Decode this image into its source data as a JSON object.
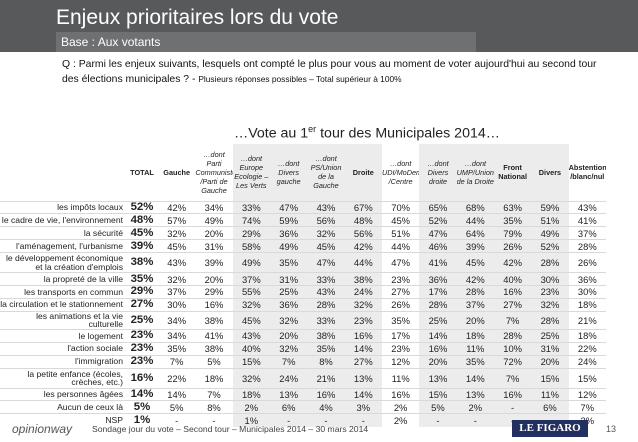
{
  "title": "Enjeux prioritaires lors du vote",
  "subtitle": "Base : Aux votants",
  "question": "Q : Parmi les enjeux suivants, lesquels ont compté le plus pour vous au moment de voter aujourd'hui au second tour des élections municipales ? - ",
  "question_note": "Plusieurs réponses possibles – Total supérieur à 100%",
  "section_prefix": "…Vote au 1",
  "section_sup": "er",
  "section_suffix": " tour des Municipales 2014…",
  "headers": [
    "TOTAL",
    "Gauche",
    "…dont Parti Communiste /Parti de Gauche",
    "…dont Europe Ecologie – Les Verts",
    "…dont Divers gauche",
    "…dont PS/Union de la Gauche",
    "Droite",
    "…dont UDI/MoDem /Centre",
    "…dont Divers droite",
    "…dont UMP/Union de la Droite",
    "Front National",
    "Divers",
    "Abstention /blanc/nul"
  ],
  "rows": [
    {
      "label": "les impôts locaux",
      "values": [
        "52%",
        "42%",
        "34%",
        "33%",
        "47%",
        "43%",
        "67%",
        "70%",
        "65%",
        "68%",
        "63%",
        "59%",
        "43%"
      ]
    },
    {
      "label": "le cadre de vie, l'environnement",
      "values": [
        "48%",
        "57%",
        "49%",
        "74%",
        "59%",
        "56%",
        "48%",
        "45%",
        "52%",
        "44%",
        "35%",
        "51%",
        "41%"
      ]
    },
    {
      "label": "la sécurité",
      "values": [
        "45%",
        "32%",
        "20%",
        "29%",
        "36%",
        "32%",
        "56%",
        "51%",
        "47%",
        "64%",
        "79%",
        "49%",
        "37%"
      ]
    },
    {
      "label": "l'aménagement, l'urbanisme",
      "values": [
        "39%",
        "45%",
        "31%",
        "58%",
        "49%",
        "45%",
        "42%",
        "44%",
        "46%",
        "39%",
        "26%",
        "52%",
        "28%"
      ]
    },
    {
      "label": "le développement économique et la création d'emplois",
      "values": [
        "38%",
        "43%",
        "39%",
        "49%",
        "35%",
        "47%",
        "44%",
        "47%",
        "41%",
        "45%",
        "42%",
        "28%",
        "26%"
      ]
    },
    {
      "label": "la propreté de la ville",
      "values": [
        "35%",
        "32%",
        "20%",
        "37%",
        "31%",
        "33%",
        "38%",
        "23%",
        "36%",
        "42%",
        "40%",
        "30%",
        "36%"
      ]
    },
    {
      "label": "les transports en commun",
      "values": [
        "29%",
        "37%",
        "29%",
        "55%",
        "25%",
        "43%",
        "24%",
        "27%",
        "17%",
        "28%",
        "16%",
        "23%",
        "30%"
      ]
    },
    {
      "label": "la circulation et le stationnement",
      "values": [
        "27%",
        "30%",
        "16%",
        "32%",
        "36%",
        "28%",
        "32%",
        "26%",
        "28%",
        "37%",
        "27%",
        "32%",
        "18%"
      ]
    },
    {
      "label": "les animations et la vie culturelle",
      "values": [
        "25%",
        "34%",
        "38%",
        "45%",
        "32%",
        "33%",
        "23%",
        "35%",
        "25%",
        "20%",
        "7%",
        "28%",
        "21%"
      ]
    },
    {
      "label": "le logement",
      "values": [
        "23%",
        "34%",
        "41%",
        "43%",
        "20%",
        "38%",
        "16%",
        "17%",
        "14%",
        "18%",
        "28%",
        "25%",
        "18%"
      ]
    },
    {
      "label": "l'action sociale",
      "values": [
        "23%",
        "35%",
        "38%",
        "40%",
        "32%",
        "35%",
        "14%",
        "23%",
        "16%",
        "11%",
        "10%",
        "31%",
        "22%"
      ]
    },
    {
      "label": "l'immigration",
      "values": [
        "23%",
        "7%",
        "5%",
        "15%",
        "7%",
        "8%",
        "27%",
        "12%",
        "20%",
        "35%",
        "72%",
        "20%",
        "24%"
      ]
    },
    {
      "label": "la petite enfance (écoles, crèches, etc.)",
      "values": [
        "16%",
        "22%",
        "18%",
        "32%",
        "24%",
        "21%",
        "13%",
        "11%",
        "13%",
        "14%",
        "7%",
        "15%",
        "15%"
      ]
    },
    {
      "label": "les personnes âgées",
      "values": [
        "14%",
        "14%",
        "7%",
        "18%",
        "13%",
        "16%",
        "14%",
        "16%",
        "15%",
        "13%",
        "16%",
        "11%",
        "12%"
      ]
    },
    {
      "label": "Aucun de ceux là",
      "values": [
        "5%",
        "5%",
        "8%",
        "2%",
        "6%",
        "4%",
        "3%",
        "2%",
        "5%",
        "2%",
        "-",
        "6%",
        "7%"
      ]
    },
    {
      "label": "NSP",
      "values": [
        "1%",
        "-",
        "-",
        "1%",
        "-",
        "-",
        "-",
        "2%",
        "-",
        "-",
        "-",
        "-",
        "2%"
      ]
    }
  ],
  "footer": {
    "logo_text": "opinionway",
    "text": "Sondage jour du vote – Second tour – Municipales 2014 – 30 mars 2014",
    "brand": "LE FIGARO",
    "page": "13"
  }
}
